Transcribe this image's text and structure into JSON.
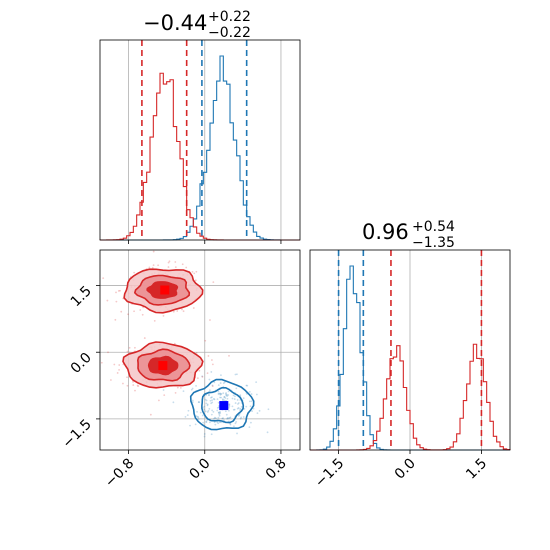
{
  "chart_data": {
    "type": "corner",
    "colors": {
      "blue": "#1f77b4",
      "red": "#d62728",
      "blue_marker": "#0000ff",
      "red_marker": "#ff0000"
    },
    "panels": [
      {
        "id": "x-marginal",
        "type": "histogram",
        "title": {
          "value": "−0.44",
          "upper": "+0.22",
          "lower": "−0.22"
        },
        "xlim": [
          -1.1,
          1.0
        ],
        "grid": true,
        "series": [
          {
            "color": "#1f77b4",
            "peaks": [
              {
                "mu": 0.18,
                "sigma": 0.14,
                "amp": 1.0
              }
            ],
            "quantiles": [
              -0.03,
              0.44
            ]
          },
          {
            "color": "#d62728",
            "peaks": [
              {
                "mu": -0.42,
                "sigma": 0.14,
                "amp": 1.0
              }
            ],
            "quantiles": [
              -0.66,
              -0.19
            ]
          }
        ]
      },
      {
        "id": "y-marginal",
        "type": "histogram",
        "title": {
          "value": "0.96",
          "upper": "+0.54",
          "lower": "−1.35"
        },
        "xlim": [
          -2.1,
          2.1
        ],
        "xticks": [
          "−1.5",
          "0.0",
          "1.5"
        ],
        "xtick_values": [
          -1.5,
          0.0,
          1.5
        ],
        "grid": true,
        "series": [
          {
            "color": "#1f77b4",
            "peaks": [
              {
                "mu": -1.2,
                "sigma": 0.18,
                "amp": 1.0
              }
            ],
            "quantiles": [
              -1.5,
              -0.98
            ]
          },
          {
            "color": "#d62728",
            "peaks": [
              {
                "mu": -0.3,
                "sigma": 0.2,
                "amp": 0.55
              },
              {
                "mu": 1.4,
                "sigma": 0.2,
                "amp": 0.55
              }
            ],
            "quantiles": [
              -0.4,
              1.5
            ]
          }
        ]
      },
      {
        "id": "joint",
        "type": "contour",
        "xlim": [
          -1.1,
          1.0
        ],
        "ylim": [
          -2.2,
          2.3
        ],
        "xticks": [
          "−0.8",
          "0.0",
          "0.8"
        ],
        "xtick_values": [
          -0.8,
          0.0,
          0.8
        ],
        "yticks": [
          "1.5",
          "0.0",
          "−1.5"
        ],
        "ytick_values": [
          1.5,
          0.0,
          -1.5
        ],
        "grid": true,
        "blobs": [
          {
            "color": "#1f77b4",
            "cx": 0.18,
            "cy": -1.2,
            "rx": 0.32,
            "ry": 0.55,
            "filled": false,
            "marker": {
              "x": 0.2,
              "y": -1.2,
              "color": "#0000ff"
            }
          },
          {
            "color": "#d62728",
            "cx": -0.44,
            "cy": 1.4,
            "rx": 0.4,
            "ry": 0.48,
            "filled": true,
            "marker": {
              "x": -0.42,
              "y": 1.4,
              "color": "#ff0000"
            }
          },
          {
            "color": "#d62728",
            "cx": -0.44,
            "cy": -0.3,
            "rx": 0.4,
            "ry": 0.5,
            "filled": true,
            "marker": {
              "x": -0.44,
              "y": -0.3,
              "color": "#ff0000"
            }
          }
        ]
      }
    ]
  }
}
